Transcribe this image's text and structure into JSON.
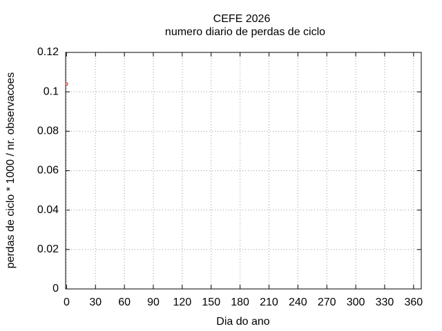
{
  "chart_data": {
    "type": "scatter",
    "title": "CEFE 2026",
    "subtitle": "numero diario de perdas de ciclo",
    "x_label": "Dia do ano",
    "y_label": "perdas de ciclo * 1000 / nr. observacoes",
    "series": [
      {
        "color": "#e41a1c",
        "x": [
          0
        ],
        "values": [
          0.104
        ]
      }
    ],
    "xlim": [
      -1,
      368
    ],
    "xticks": [
      0,
      30,
      60,
      90,
      120,
      150,
      180,
      210,
      240,
      270,
      300,
      330,
      360
    ],
    "ylim": [
      0,
      0.12
    ],
    "yticks": [
      0,
      0.02,
      0.04,
      0.06,
      0.08,
      0.1,
      0.12
    ],
    "grid": true
  }
}
